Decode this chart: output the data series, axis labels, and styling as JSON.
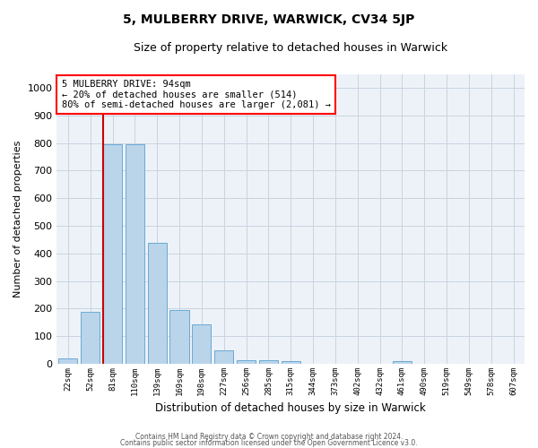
{
  "title": "5, MULBERRY DRIVE, WARWICK, CV34 5JP",
  "subtitle": "Size of property relative to detached houses in Warwick",
  "xlabel": "Distribution of detached houses by size in Warwick",
  "ylabel": "Number of detached properties",
  "bar_labels": [
    "22sqm",
    "52sqm",
    "81sqm",
    "110sqm",
    "139sqm",
    "169sqm",
    "198sqm",
    "227sqm",
    "256sqm",
    "285sqm",
    "315sqm",
    "344sqm",
    "373sqm",
    "402sqm",
    "432sqm",
    "461sqm",
    "490sqm",
    "519sqm",
    "549sqm",
    "578sqm",
    "607sqm"
  ],
  "bar_values": [
    20,
    190,
    795,
    795,
    440,
    195,
    142,
    48,
    15,
    12,
    10,
    0,
    0,
    0,
    0,
    10,
    0,
    0,
    0,
    0,
    0
  ],
  "bar_color": "#bad4ea",
  "bar_edge_color": "#6aaad4",
  "background_color": "#edf2f8",
  "grid_color": "#c8d4e0",
  "vline_color": "#cc0000",
  "annotation_text_line1": "5 MULBERRY DRIVE: 94sqm",
  "annotation_text_line2": "← 20% of detached houses are smaller (514)",
  "annotation_text_line3": "80% of semi-detached houses are larger (2,081) →",
  "ylim": [
    0,
    1050
  ],
  "yticks": [
    0,
    100,
    200,
    300,
    400,
    500,
    600,
    700,
    800,
    900,
    1000
  ],
  "footer_line1": "Contains HM Land Registry data © Crown copyright and database right 2024.",
  "footer_line2": "Contains public sector information licensed under the Open Government Licence v3.0."
}
